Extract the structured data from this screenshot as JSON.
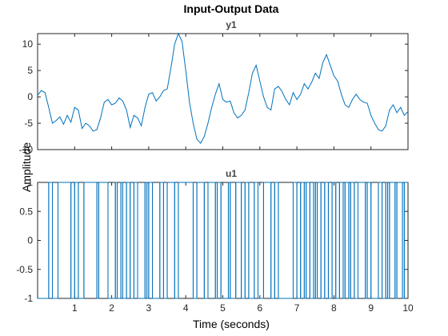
{
  "chart_data": [
    {
      "type": "line",
      "title": "Input-Output Data",
      "subtitle": "y1",
      "ylabel": "Amplitude",
      "xlim": [
        0,
        10
      ],
      "ylim": [
        -10,
        12
      ],
      "xticks": [
        1,
        2,
        3,
        4,
        5,
        6,
        7,
        8,
        9,
        10
      ],
      "yticks": [
        -10,
        -5,
        0,
        5,
        10
      ],
      "color": "#0072BD",
      "x": [
        0,
        0.1,
        0.2,
        0.3,
        0.4,
        0.5,
        0.6,
        0.7,
        0.8,
        0.9,
        1.0,
        1.1,
        1.2,
        1.3,
        1.4,
        1.5,
        1.6,
        1.7,
        1.8,
        1.9,
        2.0,
        2.1,
        2.2,
        2.3,
        2.4,
        2.5,
        2.6,
        2.7,
        2.8,
        2.9,
        3.0,
        3.1,
        3.2,
        3.3,
        3.4,
        3.5,
        3.6,
        3.7,
        3.8,
        3.9,
        4.0,
        4.1,
        4.2,
        4.3,
        4.4,
        4.5,
        4.6,
        4.7,
        4.8,
        4.9,
        5.0,
        5.1,
        5.2,
        5.3,
        5.4,
        5.5,
        5.6,
        5.7,
        5.8,
        5.9,
        6.0,
        6.1,
        6.2,
        6.3,
        6.4,
        6.5,
        6.6,
        6.7,
        6.8,
        6.9,
        7.0,
        7.1,
        7.2,
        7.3,
        7.4,
        7.5,
        7.6,
        7.7,
        7.8,
        7.9,
        8.0,
        8.1,
        8.2,
        8.3,
        8.4,
        8.5,
        8.6,
        8.7,
        8.8,
        8.9,
        9.0,
        9.1,
        9.2,
        9.3,
        9.4,
        9.5,
        9.6,
        9.7,
        9.8,
        9.9,
        10.0
      ],
      "y": [
        0.3,
        1.2,
        0.8,
        -2.0,
        -5.0,
        -4.5,
        -3.8,
        -5.2,
        -3.5,
        -4.8,
        -2.0,
        -2.5,
        -6.0,
        -5.0,
        -5.5,
        -6.5,
        -6.2,
        -4.0,
        -1.0,
        -0.5,
        -1.5,
        -1.2,
        -0.2,
        -0.8,
        -2.5,
        -5.8,
        -3.5,
        -4.0,
        -5.5,
        -2.0,
        0.5,
        0.8,
        -0.8,
        0.0,
        1.2,
        1.5,
        5.5,
        10.0,
        12.0,
        10.5,
        5.0,
        -1.0,
        -5.0,
        -8.0,
        -8.8,
        -7.5,
        -5.0,
        -2.0,
        0.5,
        2.5,
        -0.5,
        -1.0,
        -0.8,
        -3.0,
        -4.0,
        -3.5,
        -2.5,
        0.8,
        4.5,
        6.0,
        3.0,
        0.0,
        -2.0,
        -2.5,
        1.5,
        2.0,
        1.0,
        -0.5,
        -1.5,
        0.8,
        -0.5,
        0.5,
        2.5,
        1.5,
        2.8,
        4.5,
        3.5,
        6.5,
        8.0,
        6.0,
        4.0,
        3.0,
        0.5,
        -1.5,
        -2.0,
        -0.5,
        0.5,
        -0.5,
        -1.0,
        -1.2,
        -3.5,
        -5.0,
        -6.2,
        -6.5,
        -5.5,
        -2.5,
        -1.5,
        -3.0,
        -2.0,
        -3.5,
        -2.8
      ]
    },
    {
      "type": "line",
      "subtitle": "u1",
      "xlabel": "Time (seconds)",
      "xlim": [
        0,
        10
      ],
      "ylim": [
        -1,
        1
      ],
      "xticks": [
        1,
        2,
        3,
        4,
        5,
        6,
        7,
        8,
        9,
        10
      ],
      "xtick_labels": [
        "1",
        "2",
        "3",
        "4",
        "5",
        "6",
        "7",
        "8",
        "9",
        "10"
      ],
      "yticks": [
        -1,
        -0.5,
        0,
        0.5,
        1
      ],
      "ytick_labels": [
        "-1",
        "-0.5",
        "0",
        "0.5",
        "1"
      ],
      "color": "#0072BD",
      "transitions_x": [
        0.3,
        0.4,
        0.55,
        0.9,
        1.0,
        1.1,
        1.25,
        1.6,
        1.65,
        1.9,
        2.1,
        2.15,
        2.25,
        2.3,
        2.4,
        2.5,
        2.6,
        2.7,
        2.9,
        2.95,
        3.0,
        3.1,
        3.3,
        3.4,
        3.5,
        3.7,
        3.8,
        4.2,
        4.3,
        4.5,
        4.6,
        4.8,
        4.85,
        4.95,
        5.15,
        5.2,
        5.35,
        5.5,
        5.6,
        5.7,
        5.85,
        5.95,
        6.1,
        6.3,
        6.4,
        6.5,
        6.9,
        7.0,
        7.1,
        7.2,
        7.25,
        7.35,
        7.45,
        7.5,
        7.55,
        7.65,
        7.75,
        7.85,
        7.95,
        8.05,
        8.15,
        8.25,
        8.3,
        8.4,
        8.45,
        8.55,
        8.65,
        8.85,
        8.9,
        9.0,
        9.2,
        9.3,
        9.4,
        9.45,
        9.5,
        9.65,
        9.7,
        9.85,
        9.9
      ],
      "initial_value": -1
    }
  ]
}
